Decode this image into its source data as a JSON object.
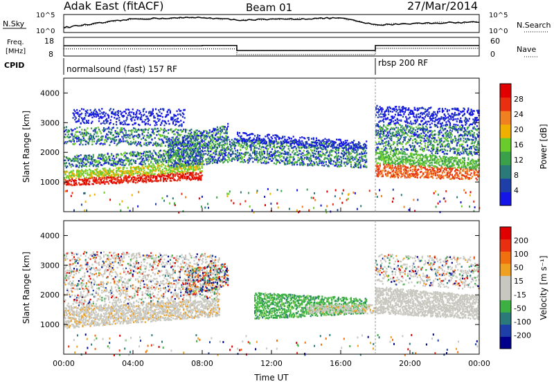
{
  "header": {
    "radar": "Adak East (fitACF)",
    "beam": "Beam 01",
    "date": "27/Mar/2014"
  },
  "top_panels": {
    "nsky_label": "N.Sky",
    "nsearch_label": "N.Search",
    "noise_ticks_left": [
      "10^5",
      "10^0"
    ],
    "noise_ticks_right": [
      "10^5",
      "10^0"
    ],
    "freq_label_line1": "Freq.",
    "freq_label_line2": "[MHz]",
    "freq_ticks": [
      "18",
      "8"
    ],
    "nave_label": "Nave",
    "nave_ticks": [
      "60",
      "0"
    ],
    "cpid_label": "CPID",
    "cpid_programs": [
      "normalsound (fast) 157 RF",
      "rbsp 200 RF"
    ]
  },
  "colors": {
    "power_scale": [
      "#1515e8",
      "#1f3fa8",
      "#2a7a7a",
      "#3aa14a",
      "#6acc2a",
      "#f0b000",
      "#f08020",
      "#e83010",
      "#e00000"
    ],
    "velocity_scale": [
      "#00008b",
      "#1f3fa8",
      "#2a7a7a",
      "#3cb043",
      "#c8c8c0",
      "#c8c8c0",
      "#f0a020",
      "#f07010",
      "#e83010",
      "#e00000"
    ]
  },
  "chart_data": [
    {
      "type": "line",
      "panel": "noise",
      "x": [
        "00:00",
        "04:00",
        "08:00",
        "10:00",
        "12:00",
        "16:00",
        "18:00",
        "20:00",
        "24:00"
      ],
      "series": [
        {
          "name": "N.Sky",
          "values": [
            7,
            24,
            27,
            22,
            23,
            26,
            12,
            15,
            18
          ]
        },
        {
          "name": "N.Search",
          "values": [
            7,
            24,
            27,
            22,
            23,
            26,
            12,
            15,
            18
          ]
        }
      ],
      "y_ticks": [
        "10^0",
        "10^5"
      ]
    },
    {
      "type": "line",
      "panel": "frequency",
      "x": [
        "00:00",
        "08:00",
        "10:00",
        "18:00",
        "24:00"
      ],
      "series": [
        {
          "name": "Freq.",
          "values": [
            13.6,
            13.8,
            10.6,
            13.8,
            13.8
          ]
        },
        {
          "name": "Nave",
          "values": [
            22,
            22,
            0,
            24,
            24
          ]
        }
      ],
      "ylim": [
        8,
        18
      ],
      "y2lim": [
        0,
        60
      ]
    },
    {
      "type": "heatmap",
      "panel": "power",
      "xlabel": "",
      "ylabel": "Slant Range [km]",
      "x_ticks": [
        "00:00",
        "04:00",
        "08:00",
        "12:00",
        "16:00",
        "20:00",
        "00:00"
      ],
      "y_ticks": [
        "1000",
        "2000",
        "3000",
        "4000"
      ],
      "ylim": [
        0,
        4500
      ],
      "colorbar_label": "Power [dB]",
      "colorbar_ticks": [
        "4",
        "8",
        "12",
        "16",
        "20",
        "24",
        "28"
      ],
      "colorbar_range": [
        0,
        30
      ]
    },
    {
      "type": "heatmap",
      "panel": "velocity",
      "xlabel": "Time UT",
      "ylabel": "Slant Range [km]",
      "x_ticks": [
        "00:00",
        "04:00",
        "08:00",
        "12:00",
        "16:00",
        "20:00",
        "00:00"
      ],
      "y_ticks": [
        "1000",
        "2000",
        "3000",
        "4000"
      ],
      "ylim": [
        0,
        4500
      ],
      "colorbar_label": "Velocity [m s⁻¹]",
      "colorbar_ticks": [
        "200",
        "100",
        "50",
        "15",
        "-15",
        "-50",
        "-100",
        "-200"
      ]
    }
  ]
}
